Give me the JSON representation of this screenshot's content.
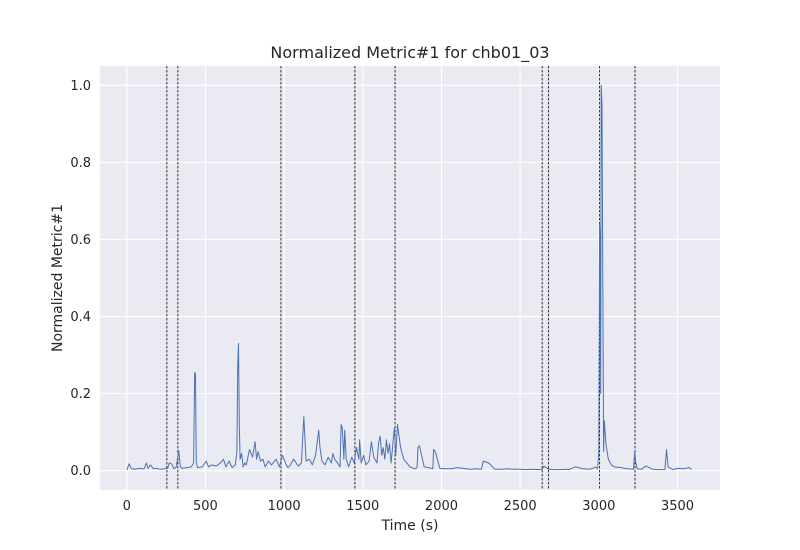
{
  "chart_data": {
    "type": "line",
    "title": "Normalized Metric#1 for chb01_03",
    "xlabel": "Time (s)",
    "ylabel": "Normalized Metric#1",
    "xlim": [
      -170,
      3770
    ],
    "ylim": [
      -0.05,
      1.05
    ],
    "xticks": [
      0,
      500,
      1000,
      1500,
      2000,
      2500,
      3000,
      3500
    ],
    "yticks": [
      0.0,
      0.2,
      0.4,
      0.6,
      0.8,
      1.0
    ],
    "xtick_labels": [
      "0",
      "500",
      "1000",
      "1500",
      "2000",
      "2500",
      "3000",
      "3500"
    ],
    "ytick_labels": [
      "0.0",
      "0.2",
      "0.4",
      "0.6",
      "0.8",
      "1.0"
    ],
    "grid": true,
    "vertical_markers": [
      255,
      325,
      980,
      1450,
      1705,
      2640,
      2680,
      3005,
      3230
    ],
    "series": [
      {
        "color": "#4c72b0",
        "x": [
          0,
          15,
          25,
          35,
          50,
          80,
          110,
          125,
          135,
          150,
          170,
          190,
          210,
          240,
          260,
          270,
          285,
          300,
          315,
          330,
          340,
          350,
          380,
          410,
          425,
          432,
          437,
          442,
          450,
          480,
          505,
          520,
          540,
          570,
          600,
          615,
          630,
          650,
          670,
          690,
          700,
          705,
          710,
          715,
          720,
          730,
          740,
          750,
          760,
          780,
          800,
          815,
          825,
          835,
          850,
          865,
          880,
          900,
          920,
          950,
          970,
          990,
          1000,
          1010,
          1025,
          1040,
          1060,
          1090,
          1110,
          1125,
          1130,
          1140,
          1160,
          1180,
          1200,
          1220,
          1228,
          1240,
          1260,
          1280,
          1300,
          1310,
          1320,
          1340,
          1355,
          1362,
          1370,
          1380,
          1385,
          1395,
          1410,
          1430,
          1445,
          1460,
          1475,
          1480,
          1490,
          1505,
          1520,
          1540,
          1555,
          1570,
          1590,
          1600,
          1610,
          1620,
          1630,
          1640,
          1650,
          1660,
          1670,
          1680,
          1700,
          1710,
          1720,
          1740,
          1760,
          1780,
          1800,
          1830,
          1845,
          1850,
          1860,
          1890,
          1920,
          1945,
          1950,
          1960,
          1990,
          2030,
          2060,
          2100,
          2140,
          2180,
          2220,
          2250,
          2255,
          2265,
          2300,
          2340,
          2380,
          2420,
          2460,
          2500,
          2540,
          2580,
          2620,
          2640,
          2650,
          2680,
          2720,
          2760,
          2790,
          2810,
          2850,
          2900,
          2940,
          2960,
          2980,
          2990,
          2994,
          3000,
          3005,
          3008,
          3012,
          3015,
          3020,
          3025,
          3030,
          3035,
          3045,
          3060,
          3080,
          3100,
          3140,
          3180,
          3220,
          3228,
          3235,
          3245,
          3270,
          3300,
          3340,
          3380,
          3420,
          3430,
          3440,
          3470,
          3500,
          3540,
          3570,
          3590
        ],
        "y": [
          0.002,
          0.018,
          0.008,
          0.005,
          0.004,
          0.006,
          0.005,
          0.02,
          0.006,
          0.015,
          0.005,
          0.006,
          0.004,
          0.005,
          0.006,
          0.02,
          0.018,
          0.005,
          0.01,
          0.052,
          0.012,
          0.006,
          0.008,
          0.01,
          0.02,
          0.255,
          0.25,
          0.02,
          0.008,
          0.01,
          0.025,
          0.01,
          0.015,
          0.012,
          0.022,
          0.03,
          0.01,
          0.025,
          0.008,
          0.015,
          0.05,
          0.27,
          0.33,
          0.12,
          0.03,
          0.045,
          0.01,
          0.02,
          0.015,
          0.055,
          0.035,
          0.075,
          0.03,
          0.05,
          0.025,
          0.03,
          0.01,
          0.025,
          0.015,
          0.03,
          0.01,
          0.04,
          0.03,
          0.018,
          0.008,
          0.015,
          0.03,
          0.012,
          0.02,
          0.14,
          0.1,
          0.025,
          0.03,
          0.015,
          0.04,
          0.105,
          0.06,
          0.025,
          0.015,
          0.035,
          0.02,
          0.045,
          0.03,
          0.02,
          0.01,
          0.12,
          0.11,
          0.03,
          0.105,
          0.03,
          0.01,
          0.035,
          0.02,
          0.06,
          0.03,
          0.08,
          0.02,
          0.04,
          0.015,
          0.025,
          0.075,
          0.035,
          0.02,
          0.07,
          0.09,
          0.04,
          0.06,
          0.03,
          0.08,
          0.045,
          0.07,
          0.02,
          0.11,
          0.04,
          0.12,
          0.06,
          0.03,
          0.02,
          0.01,
          0.005,
          0.008,
          0.06,
          0.065,
          0.01,
          0.008,
          0.005,
          0.055,
          0.05,
          0.006,
          0.005,
          0.005,
          0.008,
          0.006,
          0.004,
          0.005,
          0.004,
          0.005,
          0.025,
          0.02,
          0.004,
          0.004,
          0.005,
          0.004,
          0.004,
          0.003,
          0.004,
          0.003,
          0.004,
          0.012,
          0.004,
          0.003,
          0.003,
          0.004,
          0.003,
          0.01,
          0.005,
          0.004,
          0.006,
          0.01,
          0.005,
          0.012,
          0.05,
          0.64,
          0.6,
          0.2,
          1.0,
          0.95,
          0.5,
          0.05,
          0.13,
          0.07,
          0.03,
          0.015,
          0.01,
          0.008,
          0.005,
          0.004,
          0.05,
          0.02,
          0.005,
          0.004,
          0.012,
          0.004,
          0.003,
          0.003,
          0.055,
          0.01,
          0.003,
          0.006,
          0.005,
          0.008,
          0.004
        ]
      }
    ]
  }
}
